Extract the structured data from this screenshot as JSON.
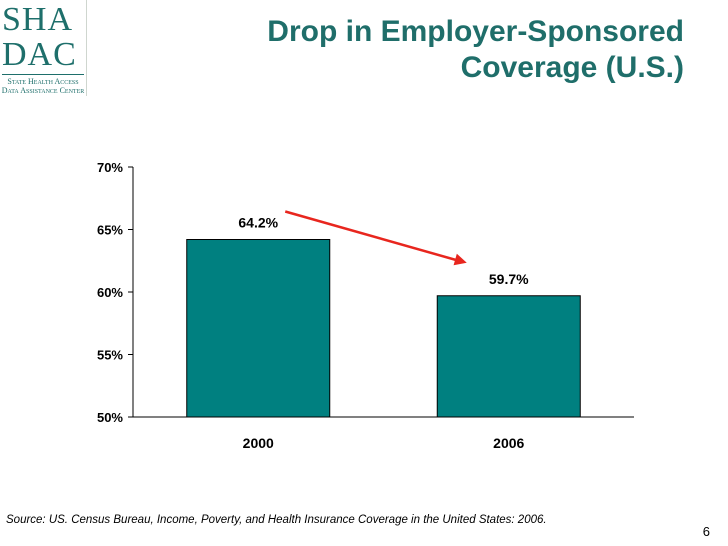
{
  "logo": {
    "line1": "SHA",
    "line2": "DAC",
    "sub1": "State Health Access",
    "sub2": "Data Assistance Center"
  },
  "slide": {
    "title_line1": "Drop in Employer-Sponsored",
    "title_line2": "Coverage (U.S.)",
    "source": "Source: US. Census Bureau, Income, Poverty, and Health Insurance Coverage in the United States: 2006.",
    "page_number": "6"
  },
  "colors": {
    "bar": "#008080",
    "arrow": "#e8261e",
    "title": "#1f6e6a"
  },
  "chart_data": {
    "type": "bar",
    "categories": [
      "2000",
      "2006"
    ],
    "values": [
      64.2,
      59.7
    ],
    "data_labels": [
      "64.2%",
      "59.7%"
    ],
    "title": "",
    "xlabel": "",
    "ylabel": "",
    "ylim": [
      50,
      70
    ],
    "yticks": [
      50,
      55,
      60,
      65,
      70
    ],
    "ytick_labels": [
      "50%",
      "55%",
      "60%",
      "65%",
      "70%"
    ],
    "annotation": "arrow from 2000 bar to 2006 bar indicating decline"
  }
}
